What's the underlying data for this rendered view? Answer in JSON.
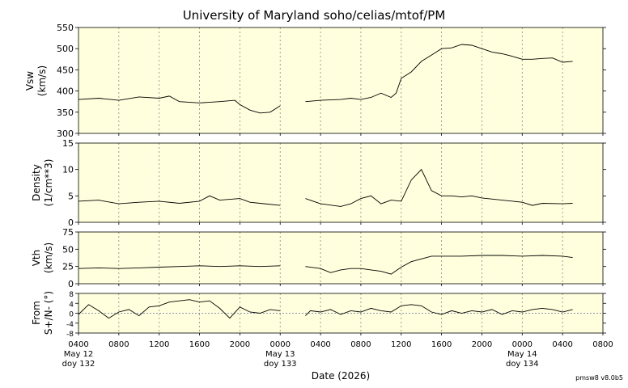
{
  "title": "University of Maryland  soho/celias/mtof/PM",
  "footer": "pmsw8 v8.0b5",
  "chart_data": {
    "type": "line",
    "title": "University of Maryland  soho/celias/mtof/PM",
    "xlabel": "Date (2026)",
    "x_range_hours": [
      0,
      52
    ],
    "x_ticks": [
      {
        "h": 0,
        "label": "0400"
      },
      {
        "h": 4,
        "label": "0800"
      },
      {
        "h": 8,
        "label": "1200"
      },
      {
        "h": 12,
        "label": "1600"
      },
      {
        "h": 16,
        "label": "2000"
      },
      {
        "h": 20,
        "label": "0000"
      },
      {
        "h": 24,
        "label": "0400"
      },
      {
        "h": 28,
        "label": "0800"
      },
      {
        "h": 32,
        "label": "1200"
      },
      {
        "h": 36,
        "label": "1600"
      },
      {
        "h": 40,
        "label": "2000"
      },
      {
        "h": 44,
        "label": "0000"
      },
      {
        "h": 48,
        "label": "0400"
      },
      {
        "h": 52,
        "label": "0800"
      }
    ],
    "date_labels": [
      {
        "h": 0,
        "line1": "May 12",
        "line2": "doy 132"
      },
      {
        "h": 20,
        "line1": "May 13",
        "line2": "doy 133"
      },
      {
        "h": 44,
        "line1": "May 14",
        "line2": "doy 134"
      }
    ],
    "data_gap_hours": [
      20,
      22.5
    ],
    "panels": [
      {
        "id": "vsw",
        "ylabel1": "Vsw",
        "ylabel2": "(km/s)",
        "ylim": [
          300,
          550
        ],
        "yticks": [
          300,
          350,
          400,
          450,
          500,
          550
        ],
        "zero_line": false,
        "points": [
          [
            0,
            380
          ],
          [
            2,
            383
          ],
          [
            4,
            378
          ],
          [
            6,
            386
          ],
          [
            8,
            383
          ],
          [
            9,
            388
          ],
          [
            10,
            375
          ],
          [
            12,
            372
          ],
          [
            14,
            375
          ],
          [
            15.5,
            378
          ],
          [
            16,
            368
          ],
          [
            17,
            355
          ],
          [
            18,
            348
          ],
          [
            19,
            350
          ],
          [
            20,
            365
          ],
          [
            22.5,
            375
          ],
          [
            24,
            378
          ],
          [
            26,
            380
          ],
          [
            27,
            383
          ],
          [
            28,
            380
          ],
          [
            29,
            385
          ],
          [
            30,
            395
          ],
          [
            31,
            385
          ],
          [
            31.5,
            395
          ],
          [
            32,
            430
          ],
          [
            33,
            445
          ],
          [
            34,
            470
          ],
          [
            35,
            485
          ],
          [
            36,
            500
          ],
          [
            37,
            502
          ],
          [
            38,
            510
          ],
          [
            39,
            508
          ],
          [
            40,
            500
          ],
          [
            41,
            492
          ],
          [
            42,
            488
          ],
          [
            43,
            482
          ],
          [
            44,
            475
          ],
          [
            45,
            475
          ],
          [
            46,
            477
          ],
          [
            47,
            478
          ],
          [
            48,
            468
          ],
          [
            49,
            470
          ]
        ]
      },
      {
        "id": "density",
        "ylabel1": "Density",
        "ylabel2": "(1/cm**3)",
        "ylim": [
          0,
          15
        ],
        "yticks": [
          0,
          5,
          10,
          15
        ],
        "zero_line": false,
        "points": [
          [
            0,
            4
          ],
          [
            2,
            4.2
          ],
          [
            4,
            3.5
          ],
          [
            6,
            3.8
          ],
          [
            8,
            4
          ],
          [
            10,
            3.6
          ],
          [
            12,
            4
          ],
          [
            13,
            5
          ],
          [
            14,
            4.2
          ],
          [
            16,
            4.5
          ],
          [
            17,
            3.8
          ],
          [
            18,
            3.6
          ],
          [
            20,
            3.2
          ],
          [
            22.5,
            4.5
          ],
          [
            24,
            3.5
          ],
          [
            26,
            3
          ],
          [
            27,
            3.5
          ],
          [
            28,
            4.5
          ],
          [
            29,
            5
          ],
          [
            30,
            3.5
          ],
          [
            31,
            4.2
          ],
          [
            32,
            4
          ],
          [
            33,
            8
          ],
          [
            34,
            10
          ],
          [
            35,
            6
          ],
          [
            36,
            5
          ],
          [
            37,
            5
          ],
          [
            38,
            4.8
          ],
          [
            39,
            5
          ],
          [
            40,
            4.6
          ],
          [
            42,
            4.2
          ],
          [
            44,
            3.8
          ],
          [
            45,
            3.2
          ],
          [
            46,
            3.6
          ],
          [
            48,
            3.5
          ],
          [
            49,
            3.6
          ]
        ]
      },
      {
        "id": "vth",
        "ylabel1": "Vth",
        "ylabel2": "(km/s)",
        "ylim": [
          0,
          75
        ],
        "yticks": [
          0,
          25,
          50,
          75
        ],
        "zero_line": false,
        "points": [
          [
            0,
            22
          ],
          [
            2,
            23
          ],
          [
            4,
            22
          ],
          [
            6,
            23
          ],
          [
            8,
            24
          ],
          [
            10,
            25
          ],
          [
            12,
            26
          ],
          [
            14,
            25
          ],
          [
            16,
            26
          ],
          [
            18,
            25
          ],
          [
            20,
            26
          ],
          [
            22.5,
            25
          ],
          [
            24,
            22
          ],
          [
            25,
            16
          ],
          [
            26,
            20
          ],
          [
            27,
            22
          ],
          [
            28,
            22
          ],
          [
            29,
            20
          ],
          [
            30,
            18
          ],
          [
            31,
            14
          ],
          [
            32,
            24
          ],
          [
            33,
            32
          ],
          [
            34,
            36
          ],
          [
            35,
            40
          ],
          [
            36,
            40
          ],
          [
            37,
            40
          ],
          [
            38,
            40
          ],
          [
            40,
            41
          ],
          [
            42,
            41
          ],
          [
            44,
            40
          ],
          [
            46,
            41
          ],
          [
            48,
            40
          ],
          [
            49,
            38
          ]
        ]
      },
      {
        "id": "flow",
        "ylabel1": "From",
        "ylabel2": "S+/N- (°)",
        "ylim": [
          -8,
          8
        ],
        "yticks": [
          -8,
          -4,
          0,
          4,
          8
        ],
        "zero_line": true,
        "points": [
          [
            0,
            -0.5
          ],
          [
            1,
            3.5
          ],
          [
            2,
            1
          ],
          [
            3,
            -2
          ],
          [
            4,
            0.5
          ],
          [
            5,
            1.5
          ],
          [
            6,
            -1
          ],
          [
            7,
            2.5
          ],
          [
            8,
            3
          ],
          [
            9,
            4.5
          ],
          [
            10,
            5
          ],
          [
            11,
            5.5
          ],
          [
            12,
            4.5
          ],
          [
            13,
            5
          ],
          [
            14,
            2
          ],
          [
            15,
            -2
          ],
          [
            16,
            2.5
          ],
          [
            17,
            0.5
          ],
          [
            18,
            0
          ],
          [
            19,
            1.5
          ],
          [
            20,
            1
          ],
          [
            22.5,
            -1
          ],
          [
            23,
            1
          ],
          [
            24,
            0.5
          ],
          [
            25,
            1.5
          ],
          [
            26,
            -0.5
          ],
          [
            27,
            1
          ],
          [
            28,
            0.5
          ],
          [
            29,
            2
          ],
          [
            30,
            1
          ],
          [
            31,
            0.5
          ],
          [
            32,
            3
          ],
          [
            33,
            3.5
          ],
          [
            34,
            3
          ],
          [
            35,
            0.5
          ],
          [
            36,
            -0.5
          ],
          [
            37,
            1
          ],
          [
            38,
            0
          ],
          [
            39,
            1
          ],
          [
            40,
            0.5
          ],
          [
            41,
            1.5
          ],
          [
            42,
            -0.5
          ],
          [
            43,
            1
          ],
          [
            44,
            0.5
          ],
          [
            45,
            1.5
          ],
          [
            46,
            2
          ],
          [
            47,
            1.5
          ],
          [
            48,
            0.5
          ],
          [
            49,
            1.5
          ]
        ]
      }
    ]
  }
}
